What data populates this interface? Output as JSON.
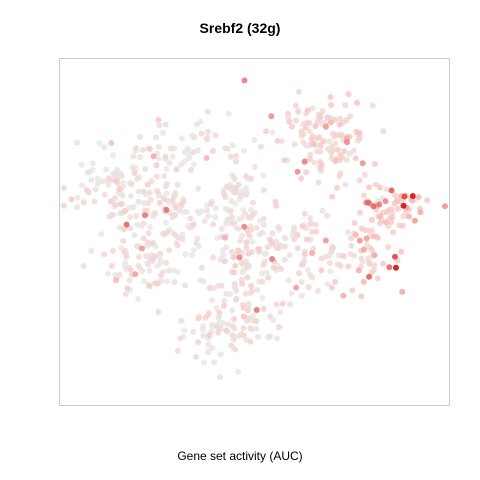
{
  "chart_data": {
    "type": "scatter",
    "title": "Srebf2 (32g)",
    "xlabel": "Gene set activity (AUC)",
    "ylabel": "",
    "grid": false,
    "legend": "none",
    "axes_visible": false,
    "xlim": [
      0,
      100
    ],
    "ylim": [
      0,
      100
    ],
    "color_scale": {
      "low": "#e8e8e8",
      "mid": "#f9c8c2",
      "high": "#cc0000"
    },
    "clusters": [
      {
        "name": "",
        "cx": 33,
        "cy": 78,
        "sx": 8,
        "sy": 4,
        "n": 50,
        "activity": 0.08
      },
      {
        "name": "",
        "cx": 12,
        "cy": 65,
        "sx": 6,
        "sy": 6,
        "n": 70,
        "activity": 0.12
      },
      {
        "name": "",
        "cx": 25,
        "cy": 55,
        "sx": 7,
        "sy": 8,
        "n": 120,
        "activity": 0.1
      },
      {
        "name": "",
        "cx": 45,
        "cy": 58,
        "sx": 4,
        "sy": 6,
        "n": 60,
        "activity": 0.12
      },
      {
        "name": "",
        "cx": 46,
        "cy": 40,
        "sx": 6,
        "sy": 6,
        "n": 80,
        "activity": 0.18
      },
      {
        "name": "",
        "cx": 62,
        "cy": 44,
        "sx": 7,
        "sy": 8,
        "n": 90,
        "activity": 0.22
      },
      {
        "name": "",
        "cx": 68,
        "cy": 80,
        "sx": 7,
        "sy": 6,
        "n": 130,
        "activity": 0.3
      },
      {
        "name": "",
        "cx": 88,
        "cy": 58,
        "sx": 5,
        "sy": 3,
        "n": 60,
        "activity": 0.45
      },
      {
        "name": "",
        "cx": 80,
        "cy": 45,
        "sx": 4,
        "sy": 6,
        "n": 55,
        "activity": 0.35
      },
      {
        "name": "",
        "cx": 42,
        "cy": 20,
        "sx": 7,
        "sy": 5,
        "n": 90,
        "activity": 0.15
      },
      {
        "name": "",
        "cx": 20,
        "cy": 40,
        "sx": 6,
        "sy": 5,
        "n": 70,
        "activity": 0.1
      }
    ]
  }
}
